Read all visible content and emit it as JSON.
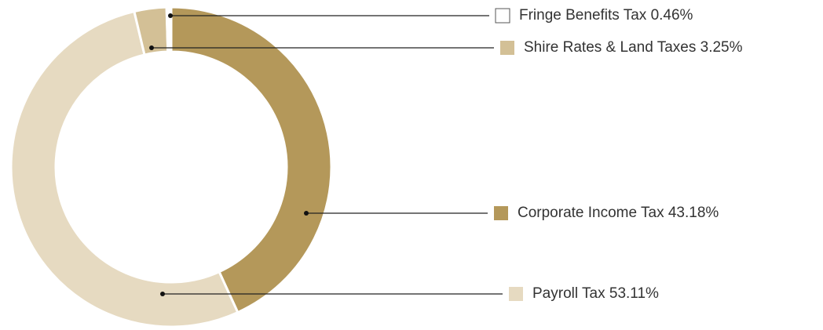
{
  "chart_data": {
    "type": "donut",
    "categories": [
      "Corporate Income Tax",
      "Payroll Tax",
      "Shire Rates & Land Taxes",
      "Fringe Benefits Tax"
    ],
    "values": [
      43.18,
      53.11,
      3.25,
      0.46
    ],
    "value_labels": [
      "43.18%",
      "53.11%",
      "3.25%",
      "0.46%"
    ],
    "colors": [
      "#b4985a",
      "#e6dac1",
      "#d3c096",
      "#ffffff"
    ]
  }
}
